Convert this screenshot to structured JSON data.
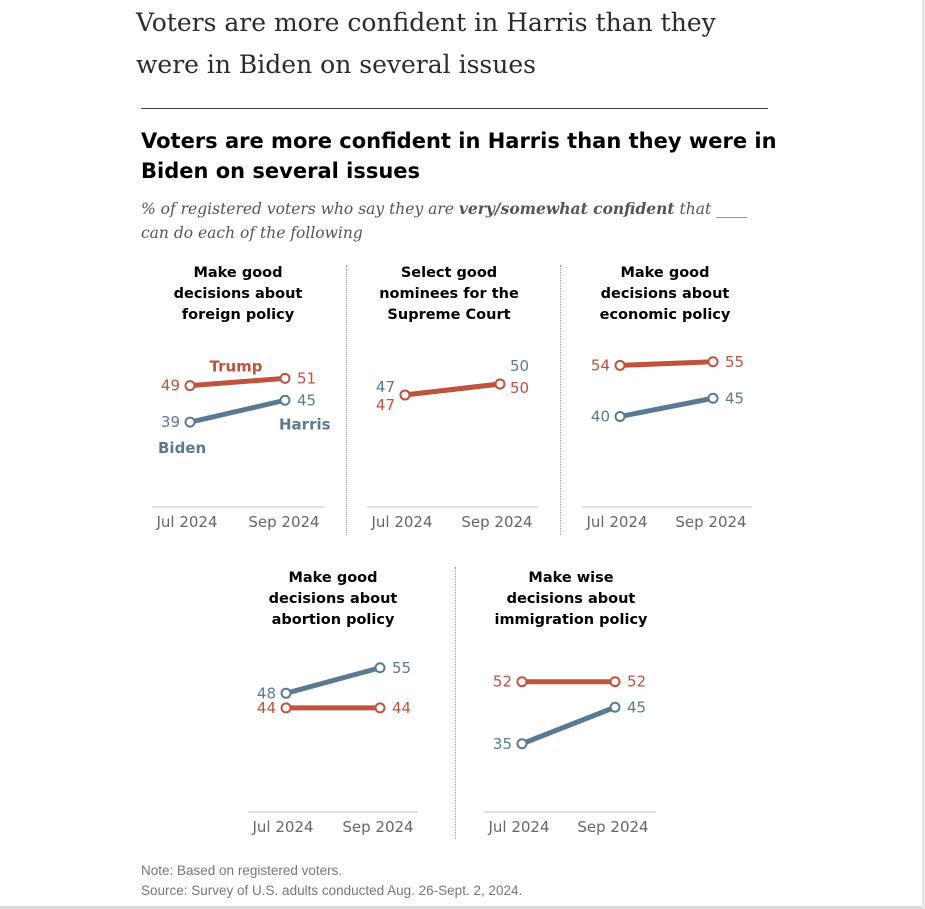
{
  "page": {
    "title": "Voters are more confident in Harris than they were in Biden on several issues"
  },
  "chart": {
    "title": "Voters are more confident in Harris than they were in Biden on several issues",
    "subtitle_pre": "% of registered voters who say they are ",
    "subtitle_bold": "very/somewhat confident",
    "subtitle_post": " that ____ can do each of the following",
    "note": "Note: Based on registered voters.",
    "source": "Source: Survey of U.S. adults conducted Aug. 26-Sept. 2, 2024."
  },
  "colors": {
    "trump": "#c0533d",
    "harris_biden": "#5a7a92"
  },
  "chart_data": [
    {
      "type": "line",
      "title": "Make good decisions about foreign policy",
      "x": [
        "Jul 2024",
        "Sep 2024"
      ],
      "series": [
        {
          "name": "Trump",
          "values": [
            49,
            51
          ]
        },
        {
          "name": "Biden / Harris",
          "start_label": "Biden",
          "end_label": "Harris",
          "values": [
            39,
            45
          ]
        }
      ]
    },
    {
      "type": "line",
      "title": "Select good nominees for the Supreme Court",
      "x": [
        "Jul 2024",
        "Sep 2024"
      ],
      "series": [
        {
          "name": "Trump",
          "values": [
            47,
            50
          ]
        },
        {
          "name": "Biden / Harris",
          "values": [
            47,
            50
          ]
        }
      ]
    },
    {
      "type": "line",
      "title": "Make good decisions about economic policy",
      "x": [
        "Jul 2024",
        "Sep 2024"
      ],
      "series": [
        {
          "name": "Trump",
          "values": [
            54,
            55
          ]
        },
        {
          "name": "Biden / Harris",
          "values": [
            40,
            45
          ]
        }
      ]
    },
    {
      "type": "line",
      "title": "Make good decisions about abortion policy",
      "x": [
        "Jul 2024",
        "Sep 2024"
      ],
      "series": [
        {
          "name": "Trump",
          "values": [
            44,
            44
          ]
        },
        {
          "name": "Biden / Harris",
          "values": [
            48,
            55
          ]
        }
      ]
    },
    {
      "type": "line",
      "title": "Make wise decisions about immigration policy",
      "x": [
        "Jul 2024",
        "Sep 2024"
      ],
      "series": [
        {
          "name": "Trump",
          "values": [
            52,
            52
          ]
        },
        {
          "name": "Biden / Harris",
          "values": [
            35,
            45
          ]
        }
      ]
    }
  ],
  "panels": [
    {
      "title_lines": [
        "Make good",
        "decisions about",
        "foreign policy"
      ]
    },
    {
      "title_lines": [
        "Select good",
        "nominees for the",
        "Supreme Court"
      ]
    },
    {
      "title_lines": [
        "Make good",
        "decisions about",
        "economic policy"
      ]
    },
    {
      "title_lines": [
        "Make good",
        "decisions about",
        "abortion policy"
      ]
    },
    {
      "title_lines": [
        "Make wise",
        "decisions about",
        "immigration policy"
      ]
    }
  ]
}
